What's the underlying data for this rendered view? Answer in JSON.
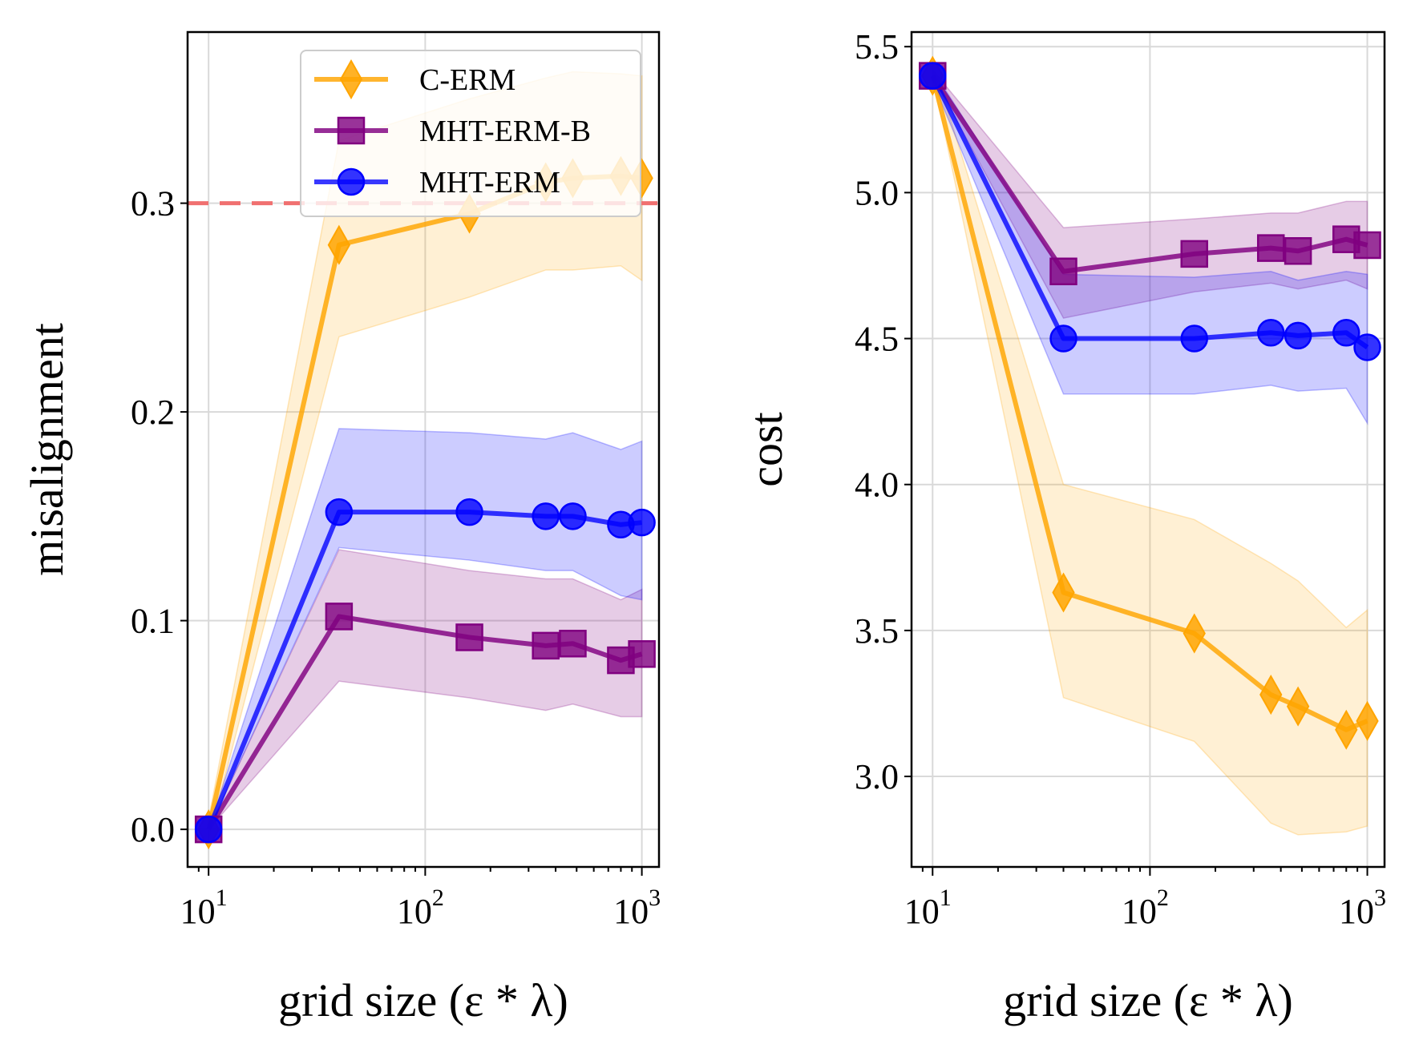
{
  "colors": {
    "c_erm": "#ffa500",
    "mht_erm_b": "#800080",
    "mht_erm": "#0000ff",
    "threshold": "#f07070"
  },
  "chart_data": [
    {
      "type": "line",
      "title": "",
      "xlabel": "grid size (ε * λ)",
      "ylabel": "misalignment",
      "xscale": "log",
      "xlim": [
        8,
        1200
      ],
      "ylim": [
        -0.018,
        0.382
      ],
      "yticks": [
        {
          "value": 0.0,
          "label": "0.0"
        },
        {
          "value": 0.1,
          "label": "0.1"
        },
        {
          "value": 0.2,
          "label": "0.2"
        },
        {
          "value": 0.3,
          "label": "0.3"
        }
      ],
      "xticks": [
        {
          "value": 10,
          "base": "10",
          "exp": "1"
        },
        {
          "value": 100,
          "base": "10",
          "exp": "2"
        },
        {
          "value": 1000,
          "base": "10",
          "exp": "3"
        }
      ],
      "grid": true,
      "threshold": 0.3,
      "legend": {
        "position": "top-right",
        "entries": [
          {
            "series": "c_erm",
            "label": "C-ERM"
          },
          {
            "series": "mht_erm_b",
            "label": "MHT-ERM-B"
          },
          {
            "series": "mht_erm",
            "label": "MHT-ERM"
          }
        ]
      },
      "x": [
        10,
        40,
        160,
        360,
        480,
        800,
        1000
      ],
      "series": [
        {
          "key": "c_erm",
          "name": "C-ERM",
          "marker": "diamond",
          "values": [
            0.0,
            0.28,
            0.295,
            0.31,
            0.312,
            0.313,
            0.312
          ],
          "lower": [
            -0.005,
            0.236,
            0.255,
            0.268,
            0.268,
            0.27,
            0.263
          ],
          "upper": [
            0.005,
            0.33,
            0.35,
            0.36,
            0.363,
            0.362,
            0.361
          ]
        },
        {
          "key": "mht_erm_b",
          "name": "MHT-ERM-B",
          "marker": "square",
          "values": [
            0.0,
            0.102,
            0.092,
            0.088,
            0.089,
            0.081,
            0.084
          ],
          "lower": [
            0.0,
            0.071,
            0.063,
            0.057,
            0.06,
            0.054,
            0.054
          ],
          "upper": [
            0.0,
            0.134,
            0.124,
            0.12,
            0.12,
            0.11,
            0.115
          ]
        },
        {
          "key": "mht_erm",
          "name": "MHT-ERM",
          "marker": "circle",
          "values": [
            0.0,
            0.152,
            0.152,
            0.15,
            0.15,
            0.146,
            0.147
          ],
          "lower": [
            0.0,
            0.135,
            0.129,
            0.124,
            0.124,
            0.112,
            0.11
          ],
          "upper": [
            0.0,
            0.192,
            0.19,
            0.187,
            0.19,
            0.182,
            0.186
          ]
        }
      ]
    },
    {
      "type": "line",
      "title": "",
      "xlabel": "grid size (ε * λ)",
      "ylabel": "cost",
      "xscale": "log",
      "xlim": [
        8,
        1200
      ],
      "ylim": [
        2.69,
        5.55
      ],
      "yticks": [
        {
          "value": 3.0,
          "label": "3.0"
        },
        {
          "value": 3.5,
          "label": "3.5"
        },
        {
          "value": 4.0,
          "label": "4.0"
        },
        {
          "value": 4.5,
          "label": "4.5"
        },
        {
          "value": 5.0,
          "label": "5.0"
        },
        {
          "value": 5.5,
          "label": "5.5"
        }
      ],
      "xticks": [
        {
          "value": 10,
          "base": "10",
          "exp": "1"
        },
        {
          "value": 100,
          "base": "10",
          "exp": "2"
        },
        {
          "value": 1000,
          "base": "10",
          "exp": "3"
        }
      ],
      "grid": true,
      "x": [
        10,
        40,
        160,
        360,
        480,
        800,
        1000
      ],
      "series": [
        {
          "key": "c_erm",
          "name": "C-ERM",
          "marker": "diamond",
          "values": [
            5.4,
            3.63,
            3.49,
            3.28,
            3.24,
            3.16,
            3.19
          ],
          "lower": [
            5.4,
            3.27,
            3.12,
            2.84,
            2.8,
            2.81,
            2.83
          ],
          "upper": [
            5.45,
            4.0,
            3.88,
            3.73,
            3.67,
            3.51,
            3.57
          ]
        },
        {
          "key": "mht_erm_b",
          "name": "MHT-ERM-B",
          "marker": "square",
          "values": [
            5.4,
            4.73,
            4.79,
            4.81,
            4.8,
            4.84,
            4.82
          ],
          "lower": [
            5.4,
            4.57,
            4.66,
            4.69,
            4.67,
            4.7,
            4.67
          ],
          "upper": [
            5.42,
            4.88,
            4.91,
            4.93,
            4.93,
            4.97,
            4.97
          ]
        },
        {
          "key": "mht_erm",
          "name": "MHT-ERM",
          "marker": "circle",
          "values": [
            5.4,
            4.5,
            4.5,
            4.52,
            4.51,
            4.52,
            4.47
          ],
          "lower": [
            5.38,
            4.31,
            4.31,
            4.34,
            4.32,
            4.33,
            4.21
          ],
          "upper": [
            5.42,
            4.72,
            4.71,
            4.73,
            4.7,
            4.73,
            4.72
          ]
        }
      ]
    }
  ]
}
